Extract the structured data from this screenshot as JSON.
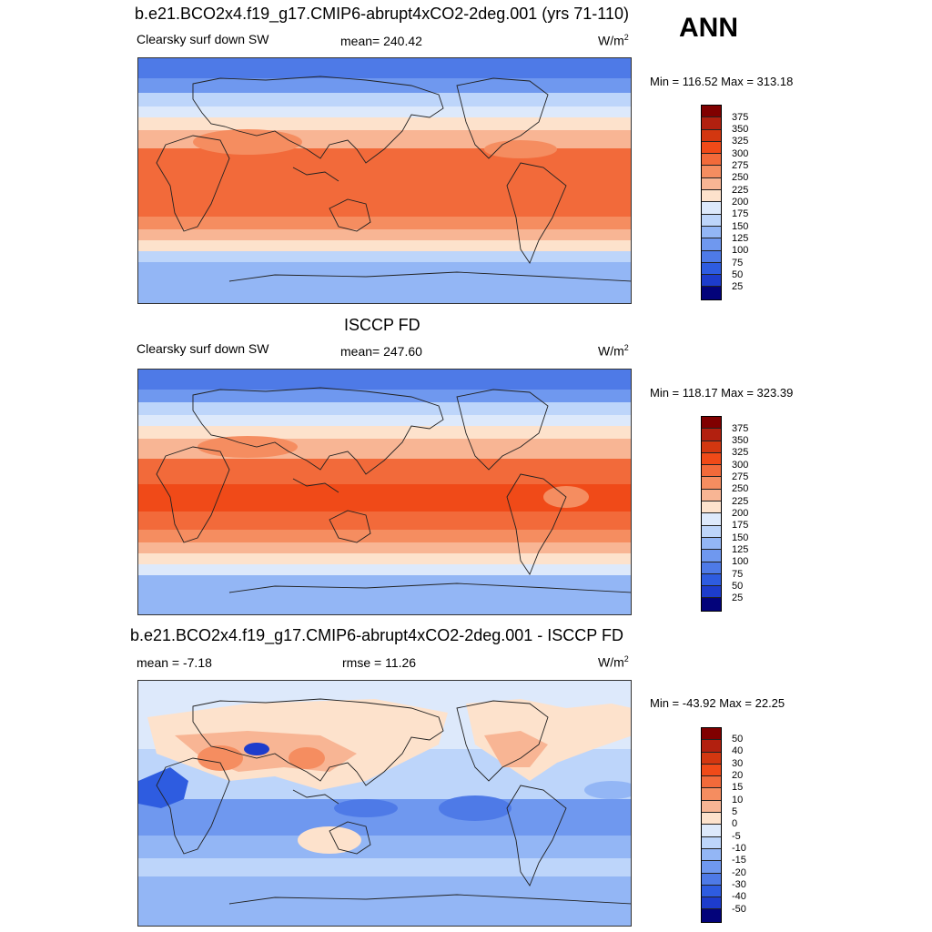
{
  "season": "ANN",
  "colors": {
    "top_scale": [
      "#800000",
      "#b2200f",
      "#d33710",
      "#f04a18",
      "#f26a3a",
      "#f58d60",
      "#f8b594",
      "#fde2cc",
      "#dde9fb",
      "#bdd5fa",
      "#93b6f5",
      "#6f98ef",
      "#4e7ae7",
      "#2e5ce0",
      "#1d3ccc",
      "#0e20a8",
      "#03037a"
    ],
    "diff_scale": [
      "#800000",
      "#b2200f",
      "#d33710",
      "#f04a18",
      "#f26a3a",
      "#f58d60",
      "#f8b594",
      "#fde2cc",
      "#dde9fb",
      "#bdd5fa",
      "#93b6f5",
      "#6f98ef",
      "#4e7ae7",
      "#2e5ce0",
      "#1d3ccc",
      "#0e20a8",
      "#03037a"
    ]
  },
  "panels": [
    {
      "title": "b.e21.BCO2x4.f19_g17.CMIP6-abrupt4xCO2-2deg.001 (yrs 71-110)",
      "left_label": "Clearsky surf down SW",
      "center_label": "mean= 240.42",
      "units_base": "W/m",
      "units_exp": "2",
      "minmax": "Min = 116.52 Max = 313.18",
      "colorbar_labels": [
        "375",
        "350",
        "325",
        "300",
        "275",
        "250",
        "225",
        "200",
        "175",
        "150",
        "125",
        "100",
        "75",
        "50",
        "25"
      ]
    },
    {
      "title": "ISCCP FD",
      "left_label": "Clearsky surf down SW",
      "center_label": "mean= 247.60",
      "units_base": "W/m",
      "units_exp": "2",
      "minmax": "Min = 118.17 Max = 323.39",
      "colorbar_labels": [
        "375",
        "350",
        "325",
        "300",
        "275",
        "250",
        "225",
        "200",
        "175",
        "150",
        "125",
        "100",
        "75",
        "50",
        "25"
      ]
    },
    {
      "title": "b.e21.BCO2x4.f19_g17.CMIP6-abrupt4xCO2-2deg.001 - ISCCP FD",
      "left_label": "mean =  -7.18",
      "center_label": "rmse =  11.26",
      "units_base": "W/m",
      "units_exp": "2",
      "minmax": "Min = -43.92 Max =  22.25",
      "colorbar_labels": [
        "50",
        "40",
        "30",
        "20",
        "15",
        "10",
        "5",
        "0",
        "-5",
        "-10",
        "-15",
        "-20",
        "-30",
        "-40",
        "-50"
      ]
    }
  ]
}
